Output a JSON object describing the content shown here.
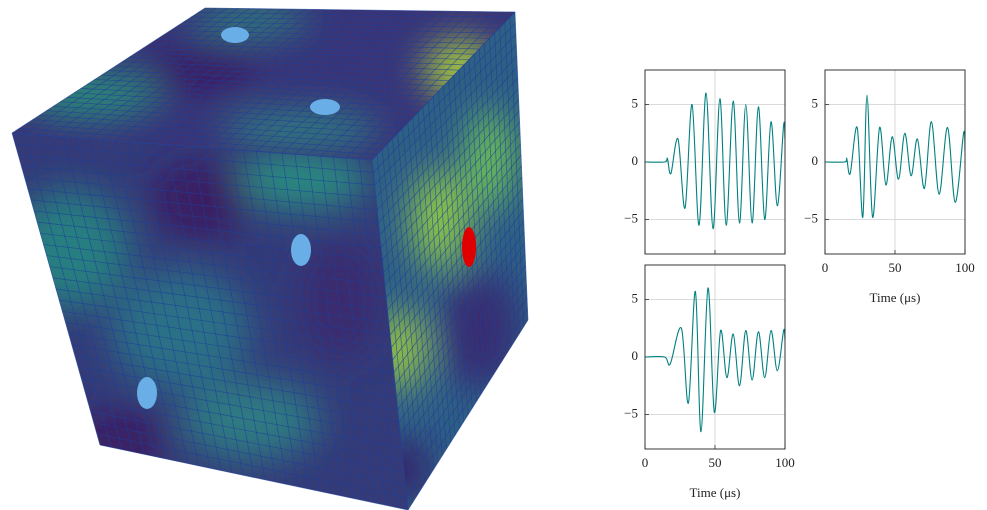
{
  "chart_data": [
    {
      "type": "line",
      "x": [
        0,
        14,
        16,
        18.5,
        23.6,
        28.6,
        33.6,
        38.6,
        43.6,
        48.6,
        53.5,
        58,
        63,
        67.5,
        72,
        76.5,
        81,
        85.5,
        90,
        94.5,
        99,
        100
      ],
      "series": [
        {
          "color": "#008080",
          "values": [
            0,
            0,
            0.3,
            -1,
            2,
            -4,
            5,
            -5.5,
            6,
            -5.8,
            5.5,
            -5.5,
            5.3,
            -5.3,
            5,
            -5.3,
            4.8,
            -5,
            3.5,
            -3.8,
            3.2,
            2
          ]
        }
      ],
      "xlim": [
        0,
        100
      ],
      "ylim": [
        -8,
        8
      ],
      "xticks": [
        0,
        50,
        100
      ],
      "show_xtick_labels": false,
      "yticks": [
        {
          "value": -5,
          "label": "−5"
        },
        0,
        5
      ],
      "grid": true
    },
    {
      "type": "line",
      "xlabel": "Time (μs)",
      "x": [
        0,
        14,
        15.5,
        18,
        23,
        27,
        30,
        34,
        39,
        43.5,
        48,
        52.5,
        57,
        61.5,
        66,
        71,
        76,
        81.5,
        87.5,
        93,
        99,
        100
      ],
      "series": [
        {
          "color": "#008080",
          "values": [
            0,
            0,
            0.3,
            -1,
            3,
            -4.8,
            5.8,
            -4.8,
            3,
            -2,
            2.2,
            -1.5,
            2.5,
            -1.2,
            2,
            -2.3,
            3.5,
            -2.8,
            3,
            -3.5,
            2.5,
            1
          ]
        }
      ],
      "xlim": [
        0,
        100
      ],
      "ylim": [
        -8,
        8
      ],
      "xticks": [
        0,
        50,
        100
      ],
      "yticks": [
        {
          "value": -5,
          "label": "−5"
        },
        0,
        5
      ],
      "grid": true
    },
    {
      "type": "line",
      "xlabel": "Time (μs)",
      "x": [
        0,
        14,
        18,
        26,
        31,
        36,
        40,
        45,
        49.5,
        54,
        58.5,
        63,
        67.5,
        72,
        76.5,
        81,
        85.5,
        90,
        94.5,
        99,
        100
      ],
      "series": [
        {
          "color": "#008080",
          "values": [
            0,
            0,
            -0.6,
            2.5,
            -4,
            5.7,
            -6.5,
            6,
            -4.8,
            2.3,
            -1.8,
            2,
            -2.5,
            2.3,
            -2,
            2.2,
            -1.8,
            2.3,
            -1.2,
            2.3,
            1.5
          ]
        }
      ],
      "xlim": [
        0,
        100
      ],
      "ylim": [
        -8,
        8
      ],
      "xticks": [
        0,
        50,
        100
      ],
      "yticks": [
        {
          "value": -5,
          "label": "−5"
        },
        0,
        5
      ],
      "grid": true
    }
  ]
}
